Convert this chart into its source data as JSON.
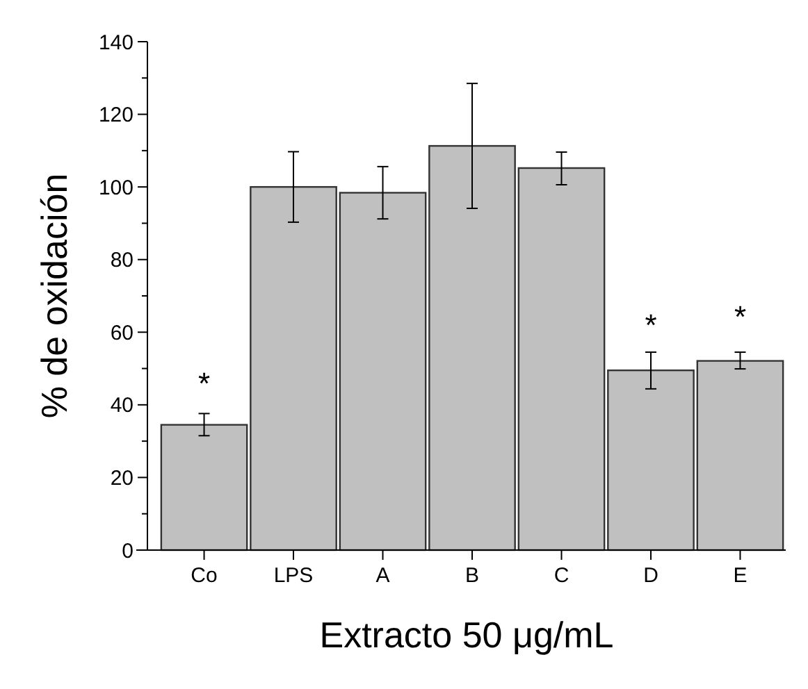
{
  "chart_data": {
    "type": "bar",
    "xlabel": "Extracto 50 μg/mL",
    "ylabel": "% de oxidación",
    "categories": [
      "Co",
      "LPS",
      "A",
      "B",
      "C",
      "D",
      "E"
    ],
    "values": [
      34.5,
      100,
      98.4,
      111.3,
      105.2,
      49.5,
      52.1
    ],
    "errors": [
      [
        31.5,
        37.6
      ],
      [
        90.3,
        109.7
      ],
      [
        91.2,
        105.6
      ],
      [
        94.1,
        128.5
      ],
      [
        100.6,
        109.6
      ],
      [
        44.4,
        54.5
      ],
      [
        49.9,
        54.5
      ]
    ],
    "color": "#c0c0c0",
    "ylim": [
      0,
      140
    ],
    "yticks": [
      0,
      {
        "value": 10,
        "label": null
      },
      20,
      {
        "value": 30,
        "label": null
      },
      40,
      {
        "value": 50,
        "label": null
      },
      60,
      {
        "value": 70,
        "label": null
      },
      80,
      {
        "value": 90,
        "label": null
      },
      100,
      {
        "value": 110,
        "label": null
      },
      120,
      {
        "value": 130,
        "label": null
      },
      140
    ],
    "annotations": [
      {
        "text": "*",
        "x": "Co",
        "y": 37.6
      },
      {
        "text": "*",
        "x": "D",
        "y": 54.5
      },
      {
        "text": "*",
        "x": "E",
        "y": 54.5
      }
    ],
    "grid": false
  }
}
